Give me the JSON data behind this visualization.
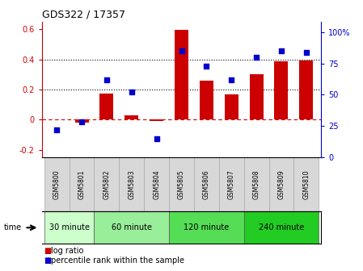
{
  "title": "GDS322 / 17357",
  "samples": [
    "GSM5800",
    "GSM5801",
    "GSM5802",
    "GSM5803",
    "GSM5804",
    "GSM5805",
    "GSM5806",
    "GSM5807",
    "GSM5808",
    "GSM5809",
    "GSM5810"
  ],
  "log_ratio": [
    0.0,
    -0.02,
    0.175,
    0.03,
    -0.01,
    0.595,
    0.26,
    0.165,
    0.3,
    0.385,
    0.39
  ],
  "percentile": [
    22,
    28,
    62,
    52,
    15,
    85,
    73,
    62,
    80,
    85,
    84
  ],
  "bar_color": "#cc0000",
  "dot_color": "#0000cc",
  "ylim_left": [
    -0.25,
    0.65
  ],
  "ylim_right": [
    0,
    108.33
  ],
  "yticks_left": [
    -0.2,
    0.0,
    0.2,
    0.4,
    0.6
  ],
  "ytick_labels_left": [
    "-0.2",
    "0",
    "0.2",
    "0.4",
    "0.6"
  ],
  "yticks_right": [
    0,
    25,
    50,
    75,
    100
  ],
  "ytick_labels_right": [
    "0",
    "25",
    "50",
    "75",
    "100%"
  ],
  "hlines": [
    0.2,
    0.4
  ],
  "zero_line_color": "#cc0000",
  "grid_color": "#000000",
  "groups": [
    {
      "label": "30 minute",
      "cols": 2,
      "color": "#ccffcc"
    },
    {
      "label": "60 minute",
      "cols": 3,
      "color": "#99ee99"
    },
    {
      "label": "120 minute",
      "cols": 3,
      "color": "#55dd55"
    },
    {
      "label": "240 minute",
      "cols": 3,
      "color": "#22cc22"
    }
  ],
  "time_label": "time",
  "legend_bar_label": "log ratio",
  "legend_dot_label": "percentile rank within the sample",
  "bar_width": 0.55,
  "sample_box_color": "#d8d8d8",
  "sample_box_edge": "#aaaaaa"
}
